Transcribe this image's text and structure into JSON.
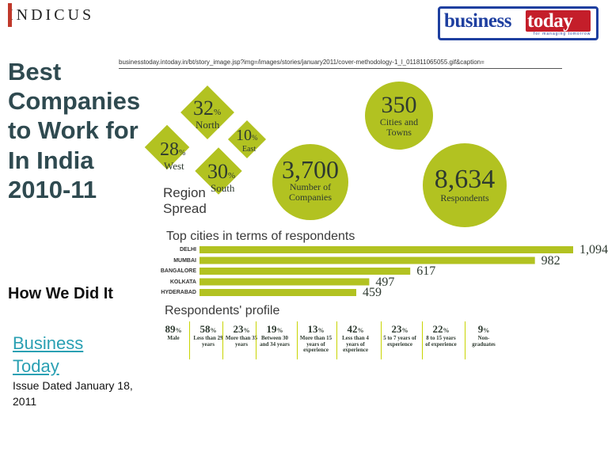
{
  "header": {
    "indicus_logo": "INDICUS",
    "bt_logo_word1": "business",
    "bt_logo_word2": "today",
    "bt_logo_tagline": "for managing tomorrow"
  },
  "slide": {
    "title_lines": [
      "Best",
      "Companies",
      "to Work for",
      "In India",
      "2010-11"
    ],
    "subtitle": "How We Did It",
    "source_link": "Business Today",
    "issue": "Issue Dated January 18, 2011"
  },
  "infographic": {
    "url": "businesstoday.intoday.in/bt/story_image.jsp?img=/images/stories/january2011/cover-methodology-1_l_011811065055.gif&caption=",
    "region_label": "Region Spread",
    "regions": [
      {
        "value": "32",
        "unit": "%",
        "name": "North"
      },
      {
        "value": "10",
        "unit": "%",
        "name": "East"
      },
      {
        "value": "28",
        "unit": "%",
        "name": "West"
      },
      {
        "value": "30",
        "unit": "%",
        "name": "South"
      }
    ],
    "stats": [
      {
        "value": "350",
        "label": "Cities and Towns"
      },
      {
        "value": "3,700",
        "label": "Number of Companies"
      },
      {
        "value": "8,634",
        "label": "Respondents"
      }
    ],
    "cities_heading": "Top cities in terms of respondents",
    "cities": [
      {
        "name": "DELHI",
        "value": 1094,
        "display": "1,094"
      },
      {
        "name": "MUMBAI",
        "value": 982,
        "display": "982"
      },
      {
        "name": "BANGALORE",
        "value": 617,
        "display": "617"
      },
      {
        "name": "KOLKATA",
        "value": 497,
        "display": "497"
      },
      {
        "name": "HYDERABAD",
        "value": 459,
        "display": "459"
      }
    ],
    "profile_heading": "Respondents' profile",
    "profile": [
      {
        "value": "89",
        "unit": "%",
        "desc": "Male"
      },
      {
        "value": "58",
        "unit": "%",
        "desc": "Less than 29 years"
      },
      {
        "value": "23",
        "unit": "%",
        "desc": "More than 35 years"
      },
      {
        "value": "19",
        "unit": "%",
        "desc": "Between 30 and 34 years"
      },
      {
        "value": "13",
        "unit": "%",
        "desc": "More than 15 years of experience"
      },
      {
        "value": "42",
        "unit": "%",
        "desc": "Less than 4 years of experience"
      },
      {
        "value": "23",
        "unit": "%",
        "desc": "5 to 7 years of experience"
      },
      {
        "value": "22",
        "unit": "%",
        "desc": "8 to 15 years of experience"
      },
      {
        "value": "9",
        "unit": "%",
        "desc": "Non-graduates"
      }
    ],
    "colors": {
      "green": "#b2c221",
      "title": "#2f4a50",
      "link": "#2aa0b3",
      "bt_blue": "#1e3fa0",
      "bt_red": "#c41e2a"
    }
  }
}
